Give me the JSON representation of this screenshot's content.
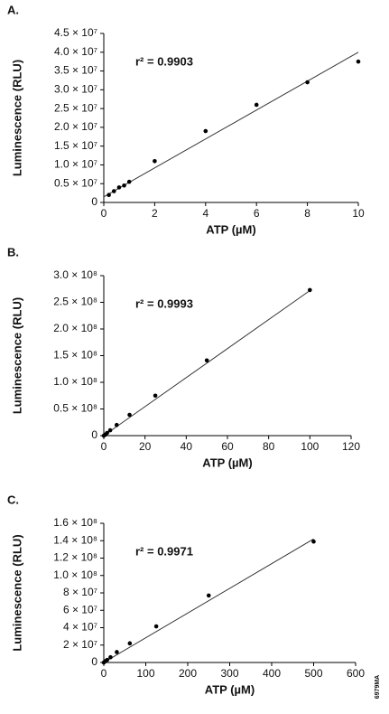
{
  "chart_data": [
    {
      "type": "scatter",
      "title": "A.",
      "annotation": "r² = 0.9903",
      "x_label": "ATP (µM)",
      "y_label": "Luminescence (RLU)",
      "x": [
        0.2,
        0.4,
        0.6,
        0.8,
        1,
        2,
        4,
        6,
        8,
        10
      ],
      "values": [
        2000000,
        3000000,
        4000000,
        4500000,
        5500000,
        11000000,
        19000000,
        26000000,
        32000000,
        37500000
      ],
      "trendline": {
        "x": [
          0,
          10
        ],
        "values": [
          1500000,
          40000000
        ]
      },
      "color": "#000000",
      "xlim": [
        0,
        10
      ],
      "xticks": [
        0,
        2,
        4,
        6,
        8,
        10
      ],
      "ylim": [
        0,
        45000000
      ],
      "yticks": [
        0,
        {
          "value": 5000000,
          "label": "0.5 × 10⁷"
        },
        {
          "value": 10000000,
          "label": "1.0 × 10⁷"
        },
        {
          "value": 15000000,
          "label": "1.5 × 10⁷"
        },
        {
          "value": 20000000,
          "label": "2.0 × 10⁷"
        },
        {
          "value": 25000000,
          "label": "2.5 × 10⁷"
        },
        {
          "value": 30000000,
          "label": "3.0 × 10⁷"
        },
        {
          "value": 35000000,
          "label": "3.5 × 10⁷"
        },
        {
          "value": 40000000,
          "label": "4.0 × 10⁷"
        },
        {
          "value": 45000000,
          "label": "4.5 × 10⁷"
        }
      ]
    },
    {
      "type": "scatter",
      "title": "B.",
      "annotation": "r² = 0.9993",
      "x_label": "ATP (µM)",
      "y_label": "Luminescence (RLU)",
      "x": [
        0,
        0.8,
        1.6,
        3.1,
        6.25,
        12.5,
        25,
        50,
        100
      ],
      "values": [
        0,
        2000000,
        5000000,
        10000000,
        20000000,
        39000000,
        75000000,
        141000000,
        273000000
      ],
      "trendline": {
        "x": [
          0,
          100
        ],
        "values": [
          0,
          272000000
        ]
      },
      "color": "#000000",
      "xlim": [
        0,
        120
      ],
      "xticks": [
        0,
        20,
        40,
        60,
        80,
        100,
        120
      ],
      "ylim": [
        0,
        300000000
      ],
      "yticks": [
        0,
        {
          "value": 50000000,
          "label": "0.5 × 10⁸"
        },
        {
          "value": 100000000,
          "label": "1.0 × 10⁸"
        },
        {
          "value": 150000000,
          "label": "1.5 × 10⁸"
        },
        {
          "value": 200000000,
          "label": "2.0 × 10⁸"
        },
        {
          "value": 250000000,
          "label": "2.5 × 10⁸"
        },
        {
          "value": 300000000,
          "label": "3.0 × 10⁸"
        }
      ]
    },
    {
      "type": "scatter",
      "title": "C.",
      "annotation": "r² = 0.9971",
      "x_label": "ATP (µM)",
      "y_label": "Luminescence (RLU)",
      "x": [
        0,
        4,
        8,
        16,
        31,
        62,
        125,
        250,
        500
      ],
      "values": [
        0,
        1500000,
        3000000,
        6000000,
        12000000,
        22000000,
        41500000,
        77000000,
        139000000
      ],
      "trendline": {
        "x": [
          0,
          500
        ],
        "values": [
          0,
          142000000
        ]
      },
      "color": "#000000",
      "xlim": [
        0,
        600
      ],
      "xticks": [
        0,
        100,
        200,
        300,
        400,
        500,
        600
      ],
      "ylim": [
        0,
        160000000
      ],
      "yticks": [
        0,
        {
          "value": 20000000,
          "label": "2 × 10⁷"
        },
        {
          "value": 40000000,
          "label": "4 × 10⁷"
        },
        {
          "value": 60000000,
          "label": "6 × 10⁷"
        },
        {
          "value": 80000000,
          "label": "8 × 10⁷"
        },
        {
          "value": 100000000,
          "label": "1.0 × 10⁸"
        },
        {
          "value": 120000000,
          "label": "1.2 × 10⁸"
        },
        {
          "value": 140000000,
          "label": "1.4 × 10⁸"
        },
        {
          "value": 160000000,
          "label": "1.6 × 10⁸"
        }
      ]
    }
  ],
  "figure_code": "6979MA"
}
